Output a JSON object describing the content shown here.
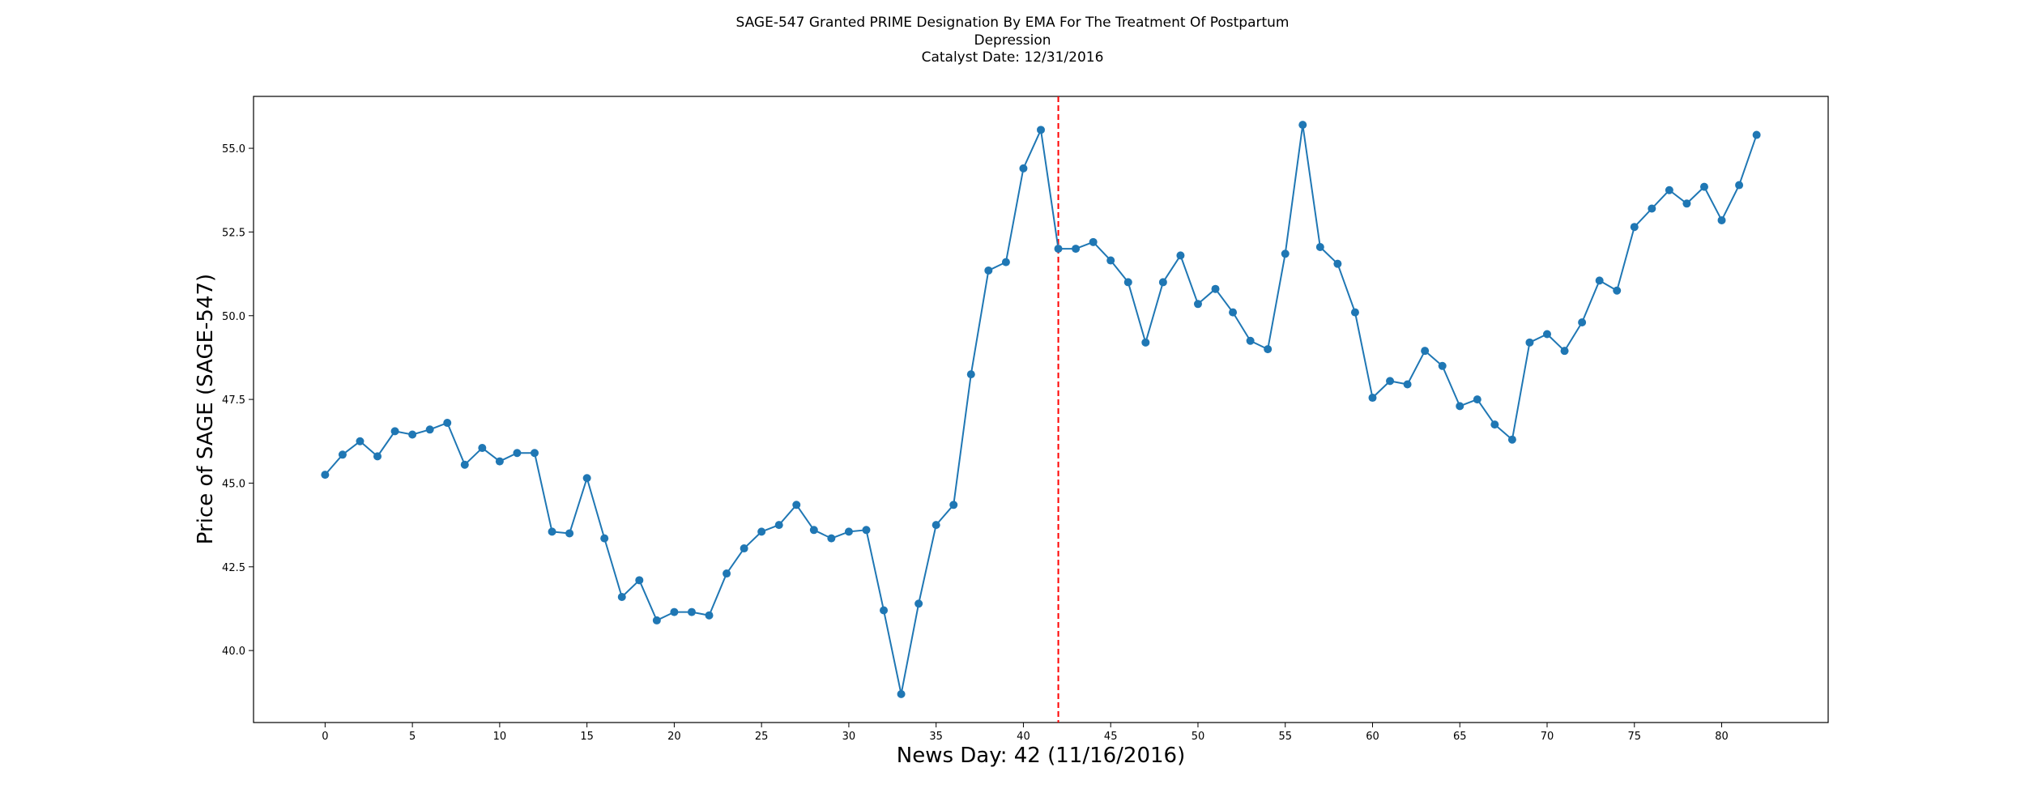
{
  "chart_data": {
    "type": "line",
    "title": [
      "SAGE-547 Granted PRIME Designation By EMA For The Treatment Of Postpartum",
      "Depression",
      "Catalyst Date: 12/31/2016"
    ],
    "xlabel": "News Day: 42 (11/16/2016)",
    "ylabel": "Price of SAGE (SAGE-547)",
    "xlim": [
      -4.1,
      86.1
    ],
    "ylim": [
      37.85,
      56.55
    ],
    "xticks": [
      0,
      5,
      10,
      15,
      20,
      25,
      30,
      35,
      40,
      45,
      50,
      55,
      60,
      65,
      70,
      75,
      80
    ],
    "yticks": [
      40.0,
      42.5,
      45.0,
      47.5,
      50.0,
      52.5,
      55.0
    ],
    "grid": false,
    "legend": false,
    "series": [
      {
        "color": "#1f77b4",
        "marker": "circle",
        "x": [
          0,
          1,
          2,
          3,
          4,
          5,
          6,
          7,
          8,
          9,
          10,
          11,
          12,
          13,
          14,
          15,
          16,
          17,
          18,
          19,
          20,
          21,
          22,
          23,
          24,
          25,
          26,
          27,
          28,
          29,
          30,
          31,
          32,
          33,
          34,
          35,
          36,
          37,
          38,
          39,
          40,
          41,
          42,
          43,
          44,
          45,
          46,
          47,
          48,
          49,
          50,
          51,
          52,
          53,
          54,
          55,
          56,
          57,
          58,
          59,
          60,
          61,
          62,
          63,
          64,
          65,
          66,
          67,
          68,
          69,
          70,
          71,
          72,
          73,
          74,
          75,
          76,
          77,
          78,
          79,
          80,
          81,
          82
        ],
        "values": [
          45.25,
          45.85,
          46.25,
          45.8,
          46.55,
          46.45,
          46.6,
          46.8,
          45.55,
          46.05,
          45.65,
          45.9,
          45.9,
          43.55,
          43.5,
          45.15,
          43.35,
          41.6,
          42.1,
          40.9,
          41.15,
          41.15,
          41.05,
          42.3,
          43.05,
          43.55,
          43.75,
          44.35,
          43.6,
          43.35,
          43.55,
          43.6,
          41.2,
          38.7,
          41.4,
          43.75,
          44.35,
          48.25,
          51.35,
          51.6,
          54.4,
          55.55,
          52.0,
          52.0,
          52.2,
          51.65,
          51.0,
          49.2,
          51.0,
          51.8,
          50.35,
          50.8,
          50.1,
          49.25,
          49.0,
          51.85,
          55.7,
          52.05,
          51.55,
          50.1,
          47.55,
          48.05,
          47.95,
          48.95,
          48.5,
          47.3,
          47.5,
          46.75,
          46.3,
          49.2,
          49.45,
          48.95,
          49.8,
          51.05,
          50.75,
          52.65,
          53.2,
          53.75,
          53.35,
          53.85,
          52.85,
          53.9,
          55.4
        ]
      }
    ],
    "annotations": [
      {
        "type": "vline",
        "x": 42,
        "color": "#ff0000",
        "style": "dashed"
      }
    ]
  }
}
